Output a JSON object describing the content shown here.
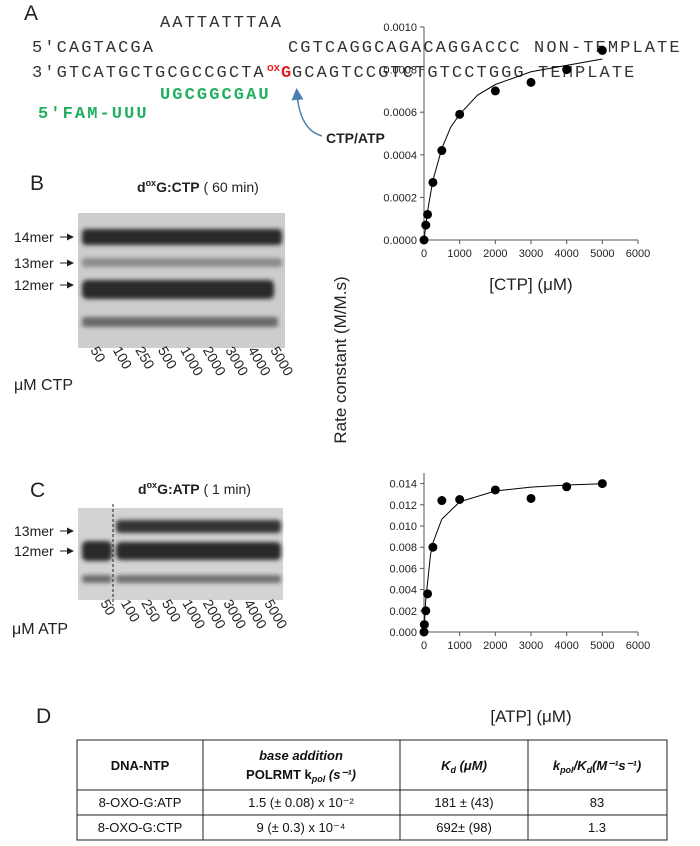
{
  "panel_labels": [
    "A",
    "B",
    "C",
    "D"
  ],
  "sequence": {
    "loop": "AATTATTTAA",
    "non_template_left": "5′CAGTACGA",
    "non_template_right": "CGTCAGGCAGACAGGACCC NON-TEMPLATE",
    "template_left": "3′GTCATGCTGCGCCGCTA",
    "lesion_mod": "ox",
    "lesion_base": "G",
    "template_right": "GCAGTCCGTCTGTCCTGGG TEMPLATE",
    "primer": "UGCGGCGAU",
    "primer_label": "5′FAM-UUU",
    "incoming": "CTP/ATP"
  },
  "gels": {
    "B": {
      "title": [
        "d",
        "ox",
        "G:CTP",
        " ( 60 min)"
      ],
      "bands": [
        "14mer",
        "13mer",
        "12mer"
      ],
      "axis_label": "μM CTP",
      "lanes": [
        50,
        100,
        250,
        500,
        1000,
        2000,
        3000,
        4000,
        5000
      ]
    },
    "C": {
      "title": [
        "d",
        "ox",
        "G:ATP",
        " ( 1 min)"
      ],
      "bands": [
        "13mer",
        "12mer"
      ],
      "axis_label": "μM ATP",
      "lanes": [
        50,
        100,
        250,
        500,
        1000,
        2000,
        3000,
        4000,
        5000
      ]
    }
  },
  "chart_data": [
    {
      "type": "scatter",
      "ylabel": "Rate constant (M/M.s)",
      "xlabel": "[CTP] (μM)",
      "xlim": [
        0,
        6000
      ],
      "xticks": [
        0,
        1000,
        2000,
        3000,
        4000,
        5000,
        6000
      ],
      "ylim": [
        0,
        0.001
      ],
      "yticks": [
        {
          "value": 0,
          "label": "0.0000"
        },
        {
          "value": 0.0002,
          "label": "0.0002"
        },
        {
          "value": 0.0004,
          "label": "0.0004"
        },
        {
          "value": 0.0006,
          "label": "0.0006"
        },
        {
          "value": 0.0008,
          "label": "0.0008"
        },
        {
          "value": 0.001,
          "label": "0.0010"
        }
      ],
      "series": [
        {
          "mode": "markers",
          "color": "#000000",
          "x": [
            0,
            50,
            100,
            250,
            500,
            1000,
            2000,
            3000,
            4000,
            5000
          ],
          "values": [
            0,
            7e-05,
            0.00012,
            0.00027,
            0.00042,
            0.00059,
            0.0007,
            0.00074,
            0.0008,
            0.00089
          ]
        },
        {
          "mode": "line",
          "color": "#000000",
          "x": [
            0,
            100,
            250,
            500,
            750,
            1000,
            1500,
            2000,
            3000,
            4000,
            5000
          ],
          "values": [
            0,
            0.000136,
            0.00028,
            0.00043,
            0.00053,
            0.00059,
            0.00068,
            0.00073,
            0.00079,
            0.00082,
            0.00085
          ]
        }
      ]
    },
    {
      "type": "scatter",
      "xlabel": "[ATP] (μM)",
      "xlim": [
        0,
        6000
      ],
      "xticks": [
        0,
        1000,
        2000,
        3000,
        4000,
        5000,
        6000
      ],
      "ylim": [
        0,
        0.015
      ],
      "yticks": [
        {
          "value": 0,
          "label": "0.000"
        },
        {
          "value": 0.002,
          "label": "0.002"
        },
        {
          "value": 0.004,
          "label": "0.004"
        },
        {
          "value": 0.006,
          "label": "0.006"
        },
        {
          "value": 0.008,
          "label": "0.008"
        },
        {
          "value": 0.01,
          "label": "0.010"
        },
        {
          "value": 0.012,
          "label": "0.012"
        },
        {
          "value": 0.014,
          "label": "0.014"
        }
      ],
      "series": [
        {
          "mode": "markers",
          "color": "#000000",
          "x": [
            0,
            10,
            50,
            100,
            250,
            500,
            1000,
            2000,
            3000,
            4000,
            5000
          ],
          "values": [
            0,
            0.0007,
            0.002,
            0.0036,
            0.008,
            0.0124,
            0.0125,
            0.0134,
            0.0126,
            0.0137,
            0.014
          ]
        },
        {
          "mode": "line",
          "color": "#000000",
          "x": [
            0,
            50,
            100,
            181,
            250,
            500,
            1000,
            2000,
            3000,
            4000,
            5000
          ],
          "values": [
            0,
            0.00314,
            0.00467,
            0.00725,
            0.00841,
            0.01065,
            0.01228,
            0.0133,
            0.01367,
            0.01387,
            0.01399
          ]
        }
      ]
    }
  ],
  "table": {
    "header": [
      [
        "DNA-NTP"
      ],
      [
        "base addition",
        "POLRMT k",
        "pol",
        " (s⁻¹)"
      ],
      [
        "K",
        "d",
        " (μM)"
      ],
      [
        "k",
        "pol",
        "/K",
        "d",
        "(M⁻¹s⁻¹)"
      ]
    ],
    "rows": [
      [
        "8-OXO-G:ATP",
        "1.5 (± 0.08) x 10⁻²",
        "181 ± (43)",
        "83"
      ],
      [
        "8-OXO-G:CTP",
        "9 (± 0.3) x 10⁻⁴",
        "692± (98)",
        "1.3"
      ]
    ]
  }
}
